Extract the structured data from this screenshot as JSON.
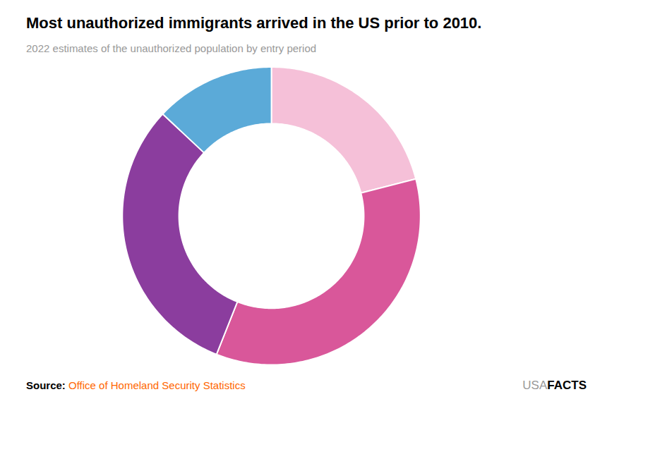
{
  "chart_data": {
    "type": "donut",
    "title": "Most unauthorized immigrants arrived in the US prior to 2010.",
    "subtitle": "2022 estimates of the unauthorized population by entry period",
    "values": [
      21,
      35,
      31,
      13
    ],
    "colors": [
      "#F5C0D8",
      "#D9579A",
      "#8B3D9E",
      "#5BAAD8"
    ],
    "source_label": "Source:",
    "source_text": " Office of Homeland Security Statistics",
    "brand": "USA",
    "brand_bold": "FACTS",
    "tick_labels": false
  }
}
